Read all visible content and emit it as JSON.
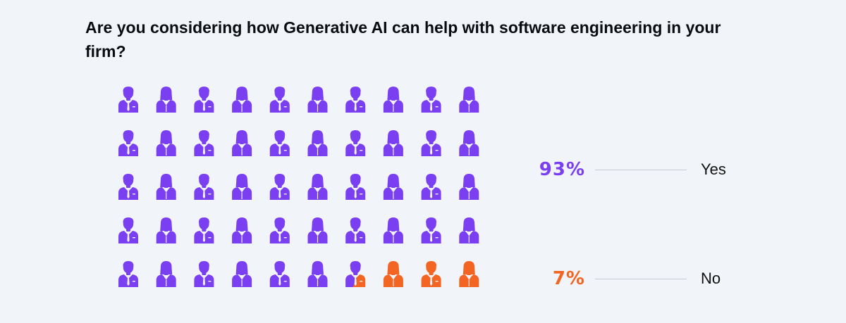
{
  "title": "Are you considering how Generative AI can help with software engineering in your firm?",
  "chart_data": {
    "type": "pictogram",
    "total_icons": 50,
    "rows": 5,
    "columns": 10,
    "series": [
      {
        "name": "Yes",
        "value": 93,
        "value_label": "93%",
        "color": "#7b3ff2"
      },
      {
        "name": "No",
        "value": 7,
        "value_label": "7%",
        "color": "#f26522"
      }
    ],
    "icon_pattern": [
      "male-icon",
      "female-icon"
    ]
  }
}
